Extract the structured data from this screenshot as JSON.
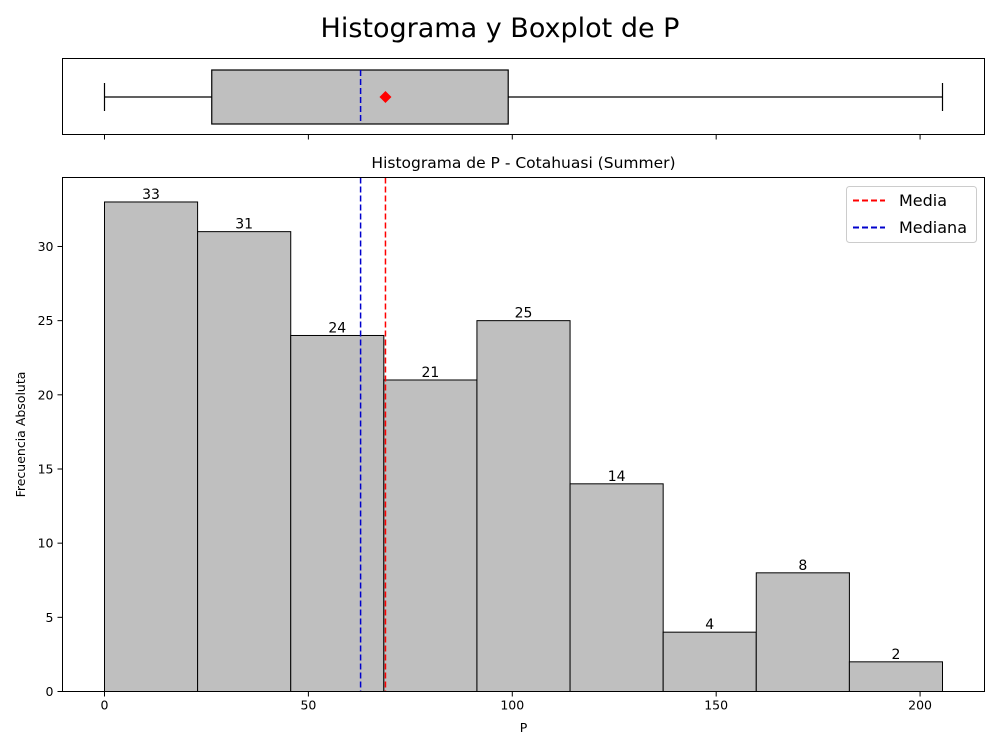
{
  "figure": {
    "title": "Histograma y Boxplot de P"
  },
  "chart_data": [
    {
      "type": "box",
      "orientation": "horizontal",
      "variable": "P",
      "whisker_low": 0,
      "q1": 26.3,
      "median": 62.8,
      "mean": 68.9,
      "q3": 99.0,
      "whisker_high": 205.5,
      "box_color": "#bfbfbf",
      "median_color": "#0000cc",
      "mean_marker_color": "#ff0000",
      "xlim": [
        -10.3,
        215.8
      ]
    },
    {
      "type": "histogram",
      "title": "Histograma de P - Cotahuasi (Summer)",
      "xlabel": "P",
      "ylabel": "Frecuencia Absoluta",
      "bin_edges": [
        0,
        22.83,
        45.67,
        68.5,
        91.33,
        114.17,
        137.0,
        159.83,
        182.67,
        205.5
      ],
      "counts": [
        33,
        31,
        24,
        21,
        25,
        14,
        4,
        8,
        2
      ],
      "bar_color": "#bfbfbf",
      "xlim": [
        -10.3,
        215.8
      ],
      "ylim": [
        0,
        34.65
      ],
      "xticks": [
        0,
        50,
        100,
        150,
        200
      ],
      "yticks": [
        0,
        5,
        10,
        15,
        20,
        25,
        30
      ],
      "mean": 68.9,
      "median": 62.8,
      "mean_color": "#ff0000",
      "median_color": "#0000cc",
      "legend": {
        "position": "top-right",
        "entries": [
          {
            "label": "Media",
            "color": "#ff0000"
          },
          {
            "label": "Mediana",
            "color": "#0000cc"
          }
        ]
      }
    }
  ]
}
